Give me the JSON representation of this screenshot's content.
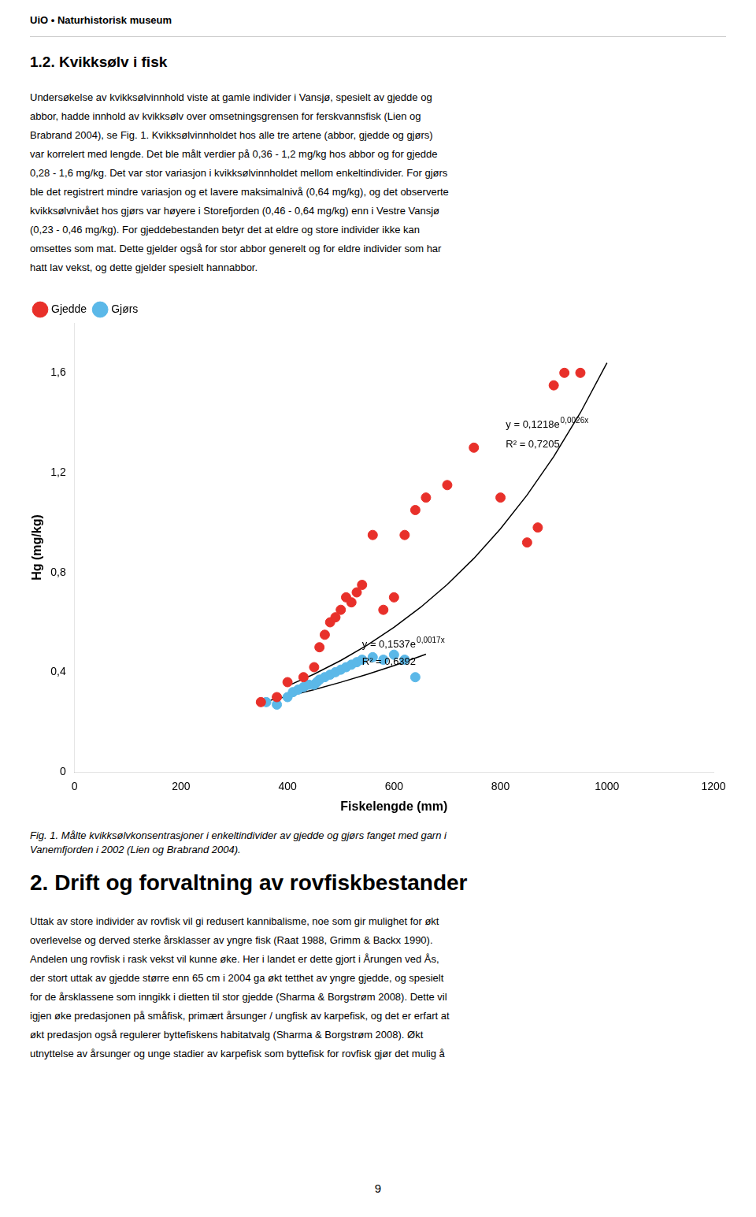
{
  "background_color": "#ffffff",
  "text_color": "#000000",
  "header_text": "UiO • Naturhistorisk museum",
  "section_title": "1.2.  Kvikksølv i fisk",
  "body_text_1": "Undersøkelse av kvikksølvinnhold viste at gamle individer i Vansjø, spesielt av gjedde og\nabbor, hadde innhold av kvikksølv over omsetningsgrensen for ferskvannsfisk (Lien og\nBrabrand 2004), se Fig. 1. Kvikksølvinnholdet hos alle tre artene (abbor, gjedde og gjørs)\nvar korrelert med lengde. Det ble målt verdier på 0,36 - 1,2 mg/kg hos abbor og for gjedde\n0,28 - 1,6 mg/kg. Det var stor variasjon i kvikksølvinnholdet mellom enkeltindivider. For gjørs\nble det registrert mindre variasjon og et lavere maksimalnivå (0,64 mg/kg), og det observerte\nkvikksølvnivået hos gjørs var høyere i Storefjorden (0,46 - 0,64 mg/kg) enn i Vestre Vansjø\n(0,23 - 0,46 mg/kg). For gjeddebestanden betyr det at eldre og store individer ikke kan\nomsettes som mat. Dette gjelder også for stor abbor generelt og for eldre individer som har\nhatt lav vekst, og dette gjelder spesielt hannabbor.",
  "chart_data": {
    "type": "scatter",
    "xlabel": "Fiskelengde (mm)",
    "ylabel": "Hg (mg/kg)",
    "xlim": [
      0,
      1200
    ],
    "ylim": [
      0,
      1.8
    ],
    "xticks": [
      0,
      200,
      400,
      600,
      800,
      1000,
      1200
    ],
    "yticks": [
      0,
      {
        "value": 0.4,
        "label": "0,4"
      },
      {
        "value": 0.8,
        "label": "0,8"
      },
      {
        "value": 1.2,
        "label": "1,2"
      },
      {
        "value": 1.6,
        "label": "1,6"
      }
    ],
    "grid": false,
    "legend": "upper left",
    "series": [
      {
        "name": "Gjedde",
        "color": "#e8302a",
        "marker": "circle",
        "x": [
          350,
          380,
          400,
          430,
          450,
          460,
          470,
          480,
          490,
          500,
          510,
          520,
          530,
          540,
          560,
          580,
          600,
          620,
          640,
          660,
          700,
          750,
          800,
          850,
          870,
          900,
          920,
          950
        ],
        "values": [
          0.28,
          0.3,
          0.36,
          0.38,
          0.42,
          0.5,
          0.55,
          0.6,
          0.62,
          0.65,
          0.7,
          0.68,
          0.72,
          0.75,
          0.95,
          0.65,
          0.7,
          0.95,
          1.05,
          1.1,
          1.15,
          1.3,
          1.1,
          0.92,
          0.98,
          1.55,
          1.6,
          1.6
        ]
      },
      {
        "name": "Gjørs",
        "color": "#5bb8e8",
        "marker": "circle",
        "x": [
          360,
          380,
          400,
          410,
          420,
          430,
          440,
          450,
          455,
          460,
          470,
          480,
          490,
          500,
          510,
          520,
          530,
          540,
          560,
          580,
          600,
          620,
          640
        ],
        "values": [
          0.28,
          0.27,
          0.3,
          0.32,
          0.33,
          0.34,
          0.35,
          0.35,
          0.36,
          0.37,
          0.38,
          0.39,
          0.4,
          0.41,
          0.42,
          0.43,
          0.44,
          0.45,
          0.46,
          0.45,
          0.47,
          0.45,
          0.38
        ]
      },
      {
        "type": "line",
        "color": "#000000",
        "line_style": "solid",
        "x": [
          400,
          450,
          500,
          550,
          600,
          650,
          700,
          750,
          800,
          850,
          900,
          950,
          1000
        ],
        "values": [
          0.3446,
          0.3924,
          0.4469,
          0.509,
          0.5796,
          0.6601,
          0.7517,
          0.8561,
          0.9749,
          1.1103,
          1.2644,
          1.44,
          1.6399
        ]
      },
      {
        "type": "line",
        "color": "#000000",
        "line_style": "solid",
        "x": [
          350,
          400,
          450,
          500,
          550,
          600,
          650,
          660
        ],
        "values": [
          0.2787,
          0.3034,
          0.3303,
          0.3596,
          0.3915,
          0.4262,
          0.4641,
          0.472
        ]
      }
    ],
    "annotations": [
      {
        "text": "y = 0,1218e",
        "superscript": "0,0026x",
        "x": 810,
        "y": 1.38
      },
      {
        "text": "R² = 0,7205",
        "x": 810,
        "y": 1.3
      },
      {
        "text": "y = 0,1537e",
        "superscript": "0,0017x",
        "x": 540,
        "y": 0.5
      },
      {
        "text": "R² = 0,6392",
        "x": 540,
        "y": 0.43
      }
    ]
  },
  "fig_caption": "Fig. 1. Målte kvikksølvkonsentrasjoner i enkeltindivider av gjedde og gjørs fanget med garn i\nVanemfjorden i 2002 (Lien og Brabrand 2004).",
  "section2_title": "2.  Drift og forvaltning av rovfiskbestander",
  "body_text_2": "Uttak av store individer av rovfisk vil gi redusert kannibalisme, noe som gir mulighet for økt\noverlevelse og derved sterke årsklasser av yngre fisk (Raat 1988, Grimm & Backx 1990).\nAndelen ung rovfisk i rask vekst vil kunne øke. Her i landet er dette gjort i Årungen ved Ås,\nder stort uttak av gjedde større enn 65 cm i 2004 ga økt tetthet av yngre gjedde, og spesielt\nfor de årsklassene som inngikk i dietten til stor gjedde (Sharma & Borgstrøm 2008). Dette vil\nigjen øke predasjonen på småfisk, primært årsunger / ungfisk av karpefisk, og det er erfart at\nøkt predasjon også regulerer byttefiskens habitatvalg (Sharma & Borgstrøm 2008). Økt\nutnyttelse av årsunger og unge stadier av karpefisk som byttefisk for rovfisk gjør det mulig å",
  "page_number": "9"
}
